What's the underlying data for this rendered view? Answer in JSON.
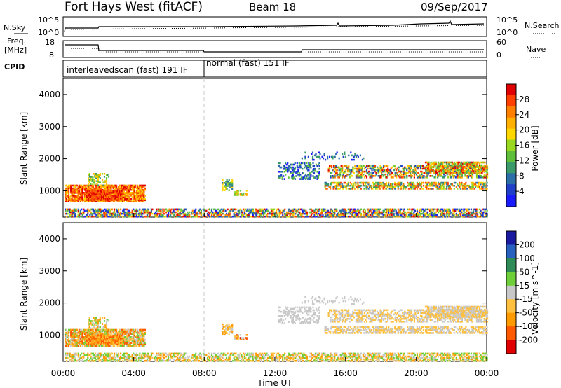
{
  "header": {
    "title": "Fort Hays West (fitACF)",
    "beam": "Beam 18",
    "date": "09/Sep/2017"
  },
  "top_panel": {
    "left_labels": [
      "N.Sky",
      "Freq.",
      "[MHz]",
      "CPID"
    ],
    "right_labels": [
      "N.Search",
      "Nave"
    ],
    "sky_ticks": [
      "10^5",
      "10^0"
    ],
    "freq_ticks": [
      "18",
      "8"
    ],
    "nave_ticks": [
      "60",
      "0"
    ],
    "search_ticks": [
      "10^5",
      "10^0"
    ],
    "cpid_1": "interleavedscan (fast) 191 IF",
    "cpid_2": "normal (fast) 151 IF"
  },
  "chart_data": [
    {
      "type": "heatmap",
      "name": "power",
      "ylabel": "Slant Range [km]",
      "ytick_labels": [
        "1000",
        "2000",
        "3000",
        "4000"
      ],
      "xtick_labels": [
        "00:00",
        "04:00",
        "08:00",
        "12:00",
        "16:00",
        "20:00",
        "00:00"
      ],
      "colorbar_label": "Power [dB]",
      "colorbar_ticks": [
        "4",
        "8",
        "12",
        "16",
        "20",
        "24",
        "28"
      ],
      "colors": [
        "#1a1aff",
        "#1f3fc8",
        "#2b6ea8",
        "#3a9a6a",
        "#5fbf3a",
        "#9ad820",
        "#ffd700",
        "#ffb000",
        "#ff7f00",
        "#ff4000",
        "#e00000"
      ],
      "xlabel": "",
      "ylim": [
        180,
        4500
      ]
    },
    {
      "type": "heatmap",
      "name": "velocity",
      "ylabel": "Slant Range [km]",
      "ytick_labels": [
        "1000",
        "2000",
        "3000",
        "4000"
      ],
      "xtick_labels": [
        "00:00",
        "04:00",
        "08:00",
        "12:00",
        "16:00",
        "20:00",
        "00:00"
      ],
      "xlabel": "Time UT",
      "colorbar_label": "Velocity [m s^-1]",
      "colorbar_ticks": [
        "200",
        "100",
        "50",
        "15",
        "-15",
        "-50",
        "-100",
        "-200"
      ],
      "colors": [
        "#1a1aa0",
        "#2860c0",
        "#2e8b57",
        "#6fcf3a",
        "#c8c8c8",
        "#ffc040",
        "#ff9a00",
        "#ff5a00",
        "#e00000"
      ],
      "ylim": [
        180,
        4500
      ]
    }
  ]
}
